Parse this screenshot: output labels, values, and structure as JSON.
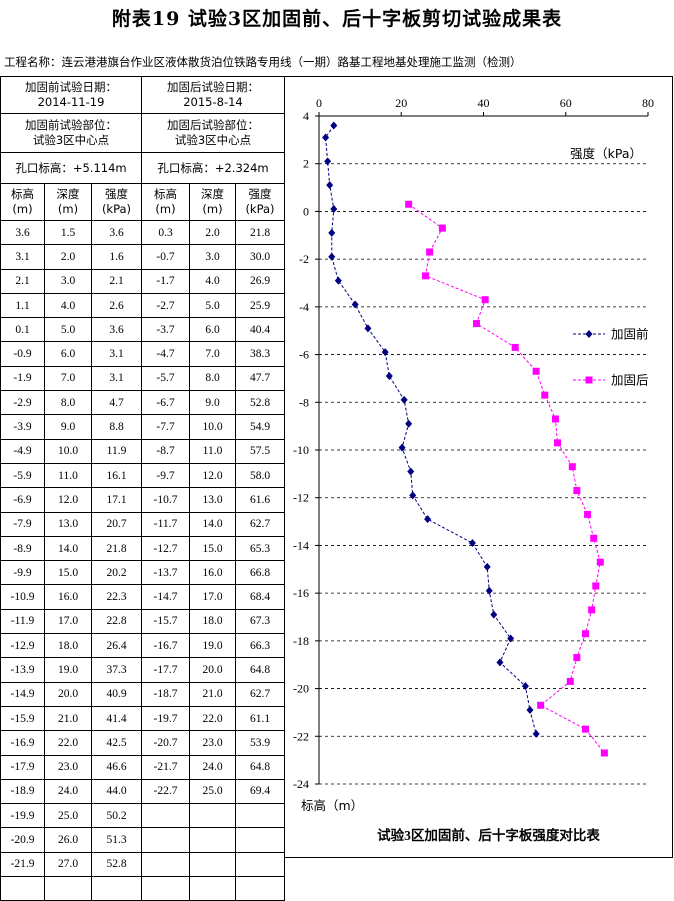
{
  "title": "附表19    试验3区加固前、后十字板剪切试验成果表",
  "project": "工程名称：连云港港旗台作业区液体散货泊位铁路专用线（一期）路基工程地基处理施工监测（检测）",
  "table": {
    "before_date_label": "加固前试验日期：",
    "before_date": "2014-11-19",
    "after_date_label": "加固后试验日期：",
    "after_date": "2015-8-14",
    "before_location_label": "加固前试验部位：",
    "before_location": "试验3区中心点",
    "after_location_label": "加固后试验部位：",
    "after_location": "试验3区中心点",
    "before_elev": "孔口标高：+5.114m",
    "after_elev": "孔口标高：+2.324m",
    "col_headers": [
      "标高\n(m)",
      "深度\n(m)",
      "强度\n(kPa)",
      "标高\n(m)",
      "深度\n(m)",
      "强度\n(kPa)"
    ],
    "rows": [
      [
        "3.6",
        "1.5",
        "3.6",
        "0.3",
        "2.0",
        "21.8"
      ],
      [
        "3.1",
        "2.0",
        "1.6",
        "-0.7",
        "3.0",
        "30.0"
      ],
      [
        "2.1",
        "3.0",
        "2.1",
        "-1.7",
        "4.0",
        "26.9"
      ],
      [
        "1.1",
        "4.0",
        "2.6",
        "-2.7",
        "5.0",
        "25.9"
      ],
      [
        "0.1",
        "5.0",
        "3.6",
        "-3.7",
        "6.0",
        "40.4"
      ],
      [
        "-0.9",
        "6.0",
        "3.1",
        "-4.7",
        "7.0",
        "38.3"
      ],
      [
        "-1.9",
        "7.0",
        "3.1",
        "-5.7",
        "8.0",
        "47.7"
      ],
      [
        "-2.9",
        "8.0",
        "4.7",
        "-6.7",
        "9.0",
        "52.8"
      ],
      [
        "-3.9",
        "9.0",
        "8.8",
        "-7.7",
        "10.0",
        "54.9"
      ],
      [
        "-4.9",
        "10.0",
        "11.9",
        "-8.7",
        "11.0",
        "57.5"
      ],
      [
        "-5.9",
        "11.0",
        "16.1",
        "-9.7",
        "12.0",
        "58.0"
      ],
      [
        "-6.9",
        "12.0",
        "17.1",
        "-10.7",
        "13.0",
        "61.6"
      ],
      [
        "-7.9",
        "13.0",
        "20.7",
        "-11.7",
        "14.0",
        "62.7"
      ],
      [
        "-8.9",
        "14.0",
        "21.8",
        "-12.7",
        "15.0",
        "65.3"
      ],
      [
        "-9.9",
        "15.0",
        "20.2",
        "-13.7",
        "16.0",
        "66.8"
      ],
      [
        "-10.9",
        "16.0",
        "22.3",
        "-14.7",
        "17.0",
        "68.4"
      ],
      [
        "-11.9",
        "17.0",
        "22.8",
        "-15.7",
        "18.0",
        "67.3"
      ],
      [
        "-12.9",
        "18.0",
        "26.4",
        "-16.7",
        "19.0",
        "66.3"
      ],
      [
        "-13.9",
        "19.0",
        "37.3",
        "-17.7",
        "20.0",
        "64.8"
      ],
      [
        "-14.9",
        "20.0",
        "40.9",
        "-18.7",
        "21.0",
        "62.7"
      ],
      [
        "-15.9",
        "21.0",
        "41.4",
        "-19.7",
        "22.0",
        "61.1"
      ],
      [
        "-16.9",
        "22.0",
        "42.5",
        "-20.7",
        "23.0",
        "53.9"
      ],
      [
        "-17.9",
        "23.0",
        "46.6",
        "-21.7",
        "24.0",
        "64.8"
      ],
      [
        "-18.9",
        "24.0",
        "44.0",
        "-22.7",
        "25.0",
        "69.4"
      ],
      [
        "-19.9",
        "25.0",
        "50.2",
        "",
        "",
        ""
      ],
      [
        "-20.9",
        "26.0",
        "51.3",
        "",
        "",
        ""
      ],
      [
        "-21.9",
        "27.0",
        "52.8",
        "",
        "",
        ""
      ],
      [
        "",
        "",
        "",
        "",
        "",
        ""
      ]
    ]
  },
  "chart_data": {
    "type": "line",
    "title": "试验3区加固前、后十字板强度对比表",
    "xlabel": "强度（kPa）",
    "ylabel": "标高（m）",
    "xlim": [
      0,
      80
    ],
    "ylim": [
      -24,
      4
    ],
    "x_ticks": [
      0,
      20,
      40,
      60,
      80
    ],
    "y_ticks": [
      4,
      2,
      0,
      -2,
      -4,
      -6,
      -8,
      -10,
      -12,
      -14,
      -16,
      -18,
      -20,
      -22,
      -24
    ],
    "x_axis_position": "top",
    "grid": "horizontal dashed",
    "legend_position": "right",
    "series": [
      {
        "name": "加固前",
        "color": "#000080",
        "marker": "diamond",
        "points": [
          [
            3.6,
            3.6
          ],
          [
            1.6,
            3.1
          ],
          [
            2.1,
            2.1
          ],
          [
            2.6,
            1.1
          ],
          [
            3.6,
            0.1
          ],
          [
            3.1,
            -0.9
          ],
          [
            3.1,
            -1.9
          ],
          [
            4.7,
            -2.9
          ],
          [
            8.8,
            -3.9
          ],
          [
            11.9,
            -4.9
          ],
          [
            16.1,
            -5.9
          ],
          [
            17.1,
            -6.9
          ],
          [
            20.7,
            -7.9
          ],
          [
            21.8,
            -8.9
          ],
          [
            20.2,
            -9.9
          ],
          [
            22.3,
            -10.9
          ],
          [
            22.8,
            -11.9
          ],
          [
            26.4,
            -12.9
          ],
          [
            37.3,
            -13.9
          ],
          [
            40.9,
            -14.9
          ],
          [
            41.4,
            -15.9
          ],
          [
            42.5,
            -16.9
          ],
          [
            46.6,
            -17.9
          ],
          [
            44.0,
            -18.9
          ],
          [
            50.2,
            -19.9
          ],
          [
            51.3,
            -20.9
          ],
          [
            52.8,
            -21.9
          ]
        ]
      },
      {
        "name": "加固后",
        "color": "#ff00ff",
        "marker": "square",
        "points": [
          [
            21.8,
            0.3
          ],
          [
            30.0,
            -0.7
          ],
          [
            26.9,
            -1.7
          ],
          [
            25.9,
            -2.7
          ],
          [
            40.4,
            -3.7
          ],
          [
            38.3,
            -4.7
          ],
          [
            47.7,
            -5.7
          ],
          [
            52.8,
            -6.7
          ],
          [
            54.9,
            -7.7
          ],
          [
            57.5,
            -8.7
          ],
          [
            58.0,
            -9.7
          ],
          [
            61.6,
            -10.7
          ],
          [
            62.7,
            -11.7
          ],
          [
            65.3,
            -12.7
          ],
          [
            66.8,
            -13.7
          ],
          [
            68.4,
            -14.7
          ],
          [
            67.3,
            -15.7
          ],
          [
            66.3,
            -16.7
          ],
          [
            64.8,
            -17.7
          ],
          [
            62.7,
            -18.7
          ],
          [
            61.1,
            -19.7
          ],
          [
            53.9,
            -20.7
          ],
          [
            64.8,
            -21.7
          ],
          [
            69.4,
            -22.7
          ]
        ]
      }
    ]
  }
}
